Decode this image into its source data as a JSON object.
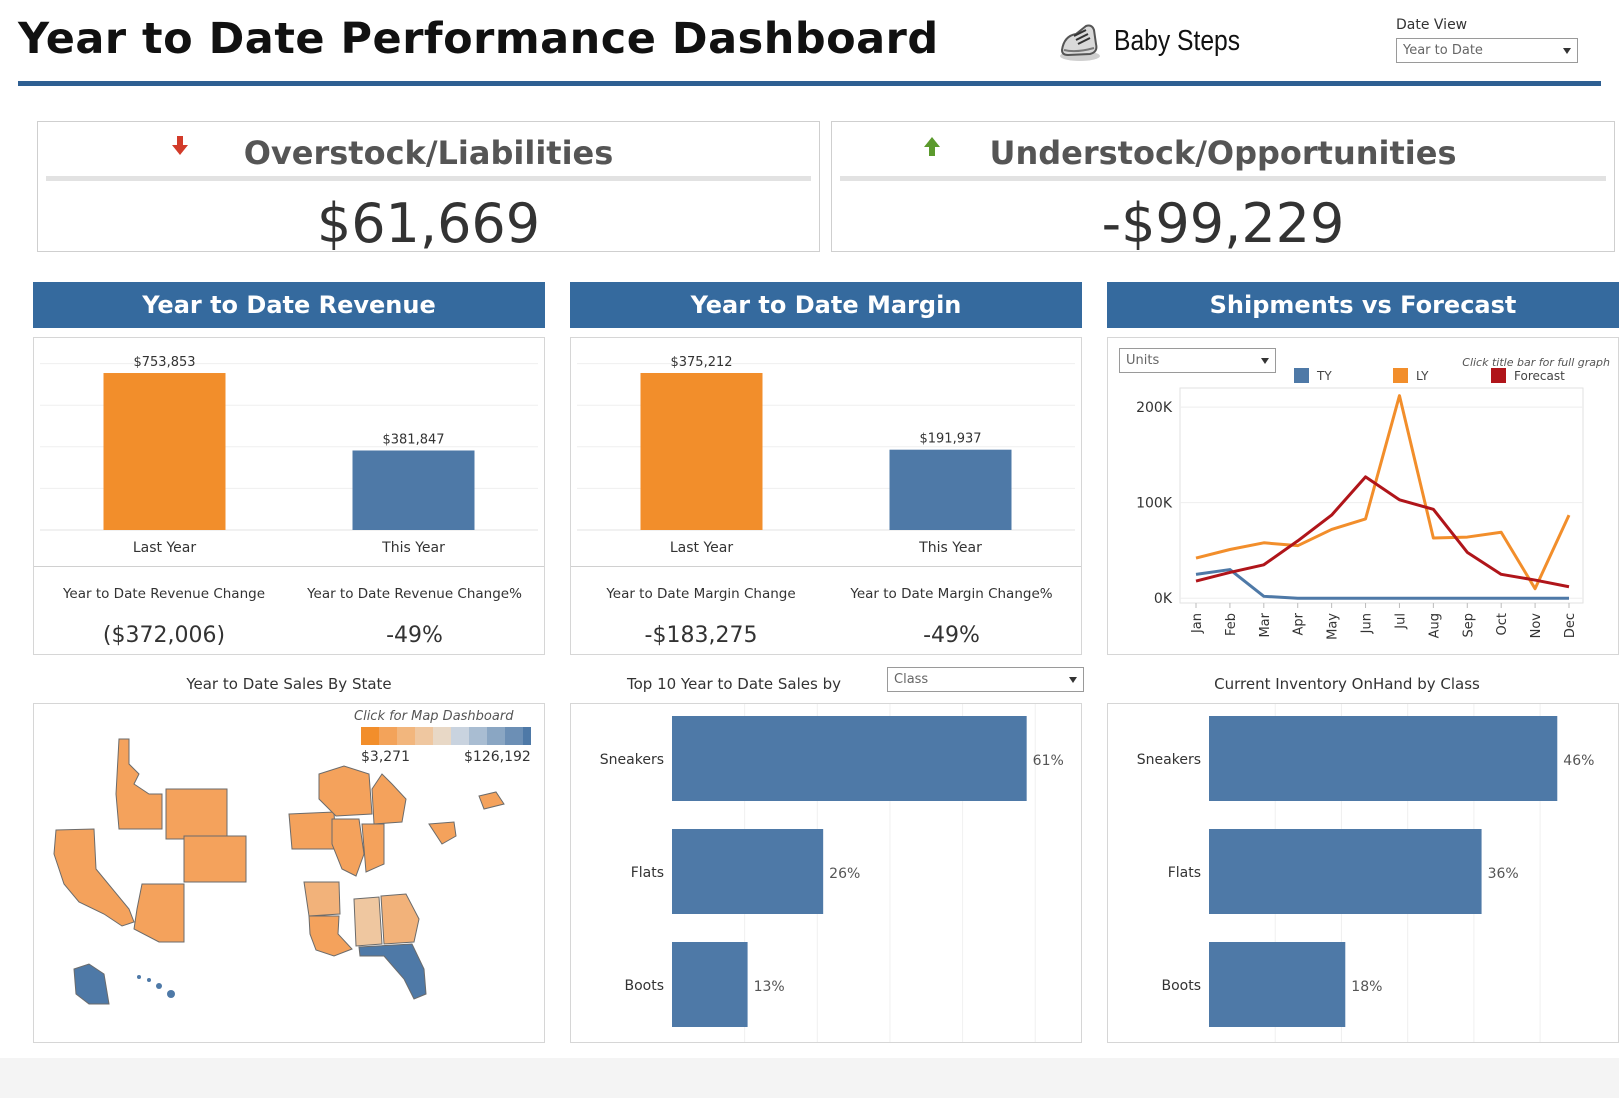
{
  "header": {
    "title": "Year to Date Performance Dashboard",
    "brand": "Baby Steps",
    "date_view_label": "Date View",
    "date_view_value": "Year to Date"
  },
  "kpis": {
    "overstock": {
      "title": "Overstock/Liabilities",
      "value": "$61,669",
      "arrow": "down",
      "color": "#d23b2a"
    },
    "understock": {
      "title": "Understock/Opportunities",
      "value": "-$99,229",
      "arrow": "up",
      "color": "#5b9a2d"
    }
  },
  "colors": {
    "band": "#356a9e",
    "orange": "#f28e2b",
    "blue": "#4e79a7",
    "forecast": "#b0151a",
    "map_low": "#f28e2b",
    "map_high": "#4e79a7"
  },
  "revenue": {
    "heading": "Year to Date Revenue",
    "change_label": "Year to Date Revenue Change",
    "change_value": "($372,006)",
    "pct_label": "Year to Date Revenue Change%",
    "pct_value": "-49%"
  },
  "margin": {
    "heading": "Year to Date Margin",
    "change_label": "Year to Date Margin Change",
    "change_value": "-$183,275",
    "pct_label": "Year to Date Margin Change%",
    "pct_value": "-49%"
  },
  "shipments": {
    "heading": "Shipments vs Forecast",
    "measure_select": "Units",
    "hint": "Click title bar for full graph"
  },
  "state_map": {
    "title": "Year to Date Sales By State",
    "hint": "Click  for Map Dashboard",
    "legend_min": "$3,271",
    "legend_max": "$126,192"
  },
  "top10": {
    "title": "Top 10 Year to Date  Sales by",
    "dimension_select": "Class"
  },
  "inventory": {
    "title": "Current Inventory OnHand by Class"
  },
  "chart_data": [
    {
      "id": "revenue",
      "type": "bar",
      "title": "Year to Date Revenue",
      "categories": [
        "Last Year",
        "This Year"
      ],
      "values": [
        753853,
        381847
      ],
      "labels": [
        "$753,853",
        "$381,847"
      ],
      "colors": [
        "#f28e2b",
        "#4e79a7"
      ],
      "ylim": [
        0,
        850000
      ]
    },
    {
      "id": "margin",
      "type": "bar",
      "title": "Year to Date Margin",
      "categories": [
        "Last Year",
        "This Year"
      ],
      "values": [
        375212,
        191937
      ],
      "labels": [
        "$375,212",
        "$191,937"
      ],
      "colors": [
        "#f28e2b",
        "#4e79a7"
      ],
      "ylim": [
        0,
        423000
      ]
    },
    {
      "id": "shipments",
      "type": "line",
      "title": "Shipments vs Forecast",
      "x": [
        "Jan",
        "Feb",
        "Mar",
        "Apr",
        "May",
        "Jun",
        "Jul",
        "Aug",
        "Sep",
        "Oct",
        "Nov",
        "Dec"
      ],
      "yticks": [
        0,
        100000,
        200000
      ],
      "ytick_labels": [
        "0K",
        "100K",
        "200K"
      ],
      "ylim": [
        -5000,
        220000
      ],
      "series": [
        {
          "name": "TY",
          "color": "#4e79a7",
          "values": [
            25000,
            30000,
            2000,
            0,
            0,
            0,
            0,
            0,
            0,
            0,
            0,
            0
          ]
        },
        {
          "name": "LY",
          "color": "#f28e2b",
          "values": [
            42000,
            51000,
            58000,
            55000,
            72000,
            83000,
            212000,
            63000,
            64000,
            69000,
            10000,
            87000
          ]
        },
        {
          "name": "Forecast",
          "color": "#b0151a",
          "values": [
            18000,
            27000,
            35000,
            60000,
            87000,
            127000,
            103000,
            93000,
            48000,
            25000,
            19000,
            12000
          ]
        }
      ]
    },
    {
      "id": "top10",
      "type": "bar",
      "orientation": "horizontal",
      "title": "Top 10 Year to Date  Sales by Class",
      "categories": [
        "Sneakers",
        "Flats",
        "Boots"
      ],
      "values": [
        61,
        26,
        13
      ],
      "labels": [
        "61%",
        "26%",
        "13%"
      ],
      "xlim": [
        0,
        70
      ]
    },
    {
      "id": "inventory",
      "type": "bar",
      "orientation": "horizontal",
      "title": "Current Inventory OnHand by Class",
      "categories": [
        "Sneakers",
        "Flats",
        "Boots"
      ],
      "values": [
        46,
        36,
        18
      ],
      "labels": [
        "46%",
        "36%",
        "18%"
      ],
      "xlim": [
        0,
        49
      ]
    }
  ]
}
